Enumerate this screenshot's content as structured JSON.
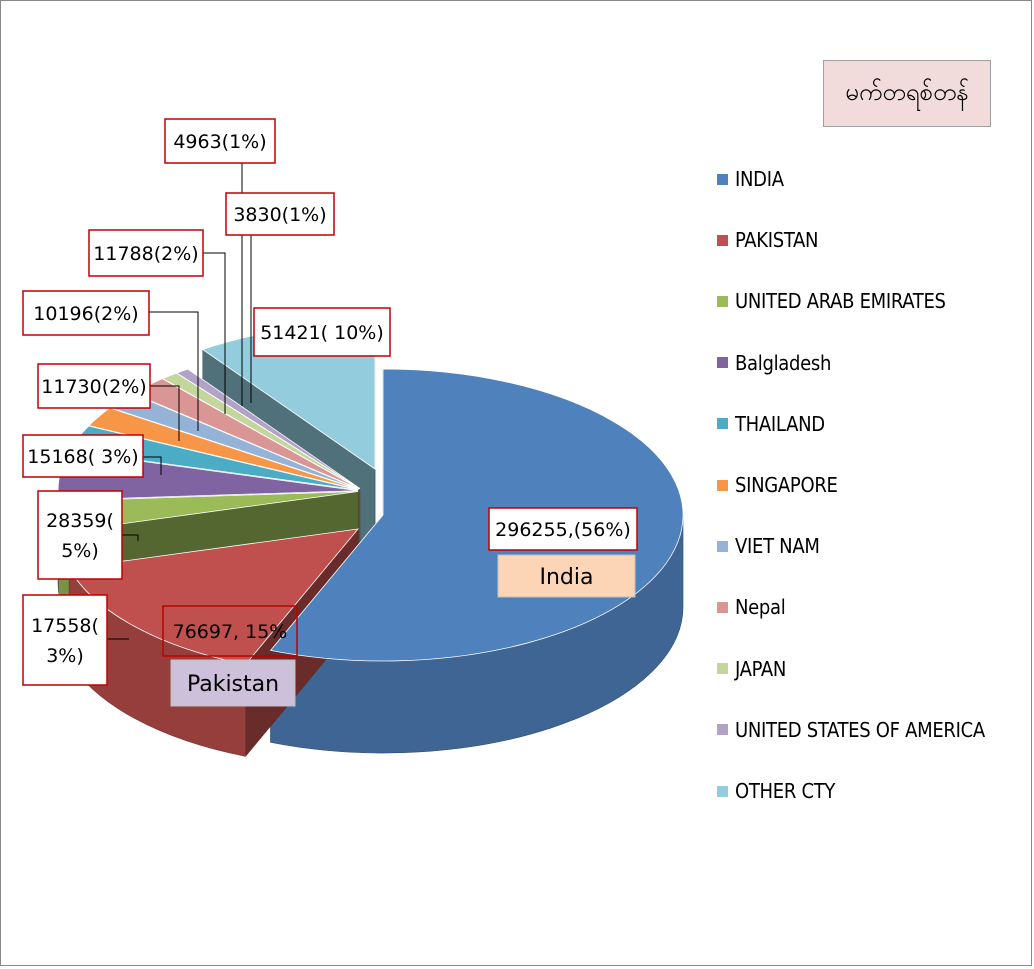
{
  "chart_data": {
    "type": "pie",
    "title": "မက်တရစ်တန်",
    "legend_position": "right",
    "slices": [
      {
        "name": "INDIA",
        "value": 296255,
        "label": "296255,(56%)",
        "tag": "India",
        "color": "#4f81bd"
      },
      {
        "name": "PAKISTAN",
        "value": 76697,
        "label": "76697, 15%",
        "tag": "Pakistan",
        "color": "#c0504d"
      },
      {
        "name": "UNITED ARAB EMIRATES",
        "value": 17558,
        "label_lines": [
          "17558(",
          "3%)"
        ],
        "color": "#9bbb59"
      },
      {
        "name": "Balgladesh",
        "value": 28359,
        "label_lines": [
          "28359(",
          "5%)"
        ],
        "color": "#8064a2"
      },
      {
        "name": "THAILAND",
        "value": 15168,
        "label": "15168( 3%)",
        "color": "#4bacc6"
      },
      {
        "name": "SINGAPORE",
        "value": 11730,
        "label": "11730(2%)",
        "color": "#f79646"
      },
      {
        "name": "VIET NAM",
        "value": 10196,
        "label": "10196(2%)",
        "color": "#95b3d7"
      },
      {
        "name": "Nepal",
        "value": 11788,
        "label": "11788(2%)",
        "color": "#d99694"
      },
      {
        "name": "JAPAN",
        "value": 4963,
        "label": "4963(1%)",
        "color": "#c3d69b"
      },
      {
        "name": "UNITED STATES OF AMERICA",
        "value": 3830,
        "label": "3830(1%)",
        "color": "#b2a2c7"
      },
      {
        "name": "OTHER CTY",
        "value": 51421,
        "label": "51421( 10%)",
        "color": "#93cddd"
      }
    ]
  }
}
